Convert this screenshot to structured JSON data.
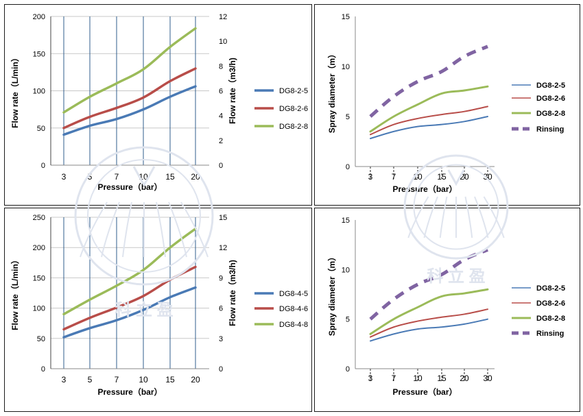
{
  "chart_data": [
    {
      "type": "line",
      "categories": [
        "3",
        "5",
        "7",
        "10",
        "15",
        "20"
      ],
      "ylabel": "Flow rate（L/min）",
      "y2label": "Flow rate（m3/h)",
      "xlabel": "Pressure（bar）",
      "ylim": [
        0,
        200
      ],
      "yticks": [
        "0",
        "50",
        "100",
        "150",
        "200"
      ],
      "y2lim": [
        0,
        12
      ],
      "y2ticks": [
        "0",
        "2",
        "4",
        "6",
        "8",
        "10",
        "12"
      ],
      "legend_position": "right",
      "series": [
        {
          "name": "DG8-2-5",
          "color": "#4a7ab5",
          "values": [
            41,
            53,
            62,
            75,
            92,
            106
          ]
        },
        {
          "name": "DG8-2-6",
          "color": "#b84d49",
          "values": [
            50,
            65,
            77,
            91,
            113,
            130
          ]
        },
        {
          "name": "DG8-2-8",
          "color": "#9bbb59",
          "values": [
            71,
            92,
            110,
            129,
            159,
            184
          ]
        }
      ]
    },
    {
      "type": "line",
      "categories": [
        "3",
        "7",
        "10",
        "15",
        "20",
        "30"
      ],
      "ylabel": "Spray diameter（m）",
      "xlabel": "Pressure（bar）",
      "ylim": [
        0,
        15
      ],
      "yticks": [
        "0",
        "5",
        "10",
        "15"
      ],
      "legend_position": "right",
      "series": [
        {
          "name": "DG8-2-5",
          "color": "#4a7ab5",
          "values": [
            2.8,
            3.5,
            4.0,
            4.2,
            4.5,
            5.0
          ]
        },
        {
          "name": "DG8-2-6",
          "color": "#b84d49",
          "values": [
            3.2,
            4.2,
            4.8,
            5.2,
            5.5,
            6.0
          ]
        },
        {
          "name": "DG8-2-8",
          "color": "#9bbb59",
          "values": [
            3.5,
            5.0,
            6.2,
            7.3,
            7.6,
            8.0
          ]
        },
        {
          "name": "Rinsing",
          "color": "#8064a2",
          "values": [
            5.0,
            7.0,
            8.5,
            9.5,
            11.0,
            12.0
          ]
        }
      ]
    },
    {
      "type": "line",
      "categories": [
        "3",
        "5",
        "7",
        "10",
        "15",
        "20"
      ],
      "ylabel": "Flow rate（L/min）",
      "y2label": "Flow rate（m3/h)",
      "xlabel": "Pressure（bar）",
      "ylim": [
        0,
        250
      ],
      "yticks": [
        "0",
        "50",
        "100",
        "150",
        "200",
        "250"
      ],
      "y2lim": [
        0,
        15
      ],
      "y2ticks": [
        "0",
        "3",
        "6",
        "9",
        "12",
        "15"
      ],
      "legend_position": "right",
      "series": [
        {
          "name": "DG8-4-5",
          "color": "#4a7ab5",
          "values": [
            52,
            67,
            80,
            97,
            118,
            134
          ]
        },
        {
          "name": "DG8-4-6",
          "color": "#b84d49",
          "values": [
            65,
            84,
            101,
            120,
            147,
            168
          ]
        },
        {
          "name": "DG8-4-8",
          "color": "#9bbb59",
          "values": [
            90,
            114,
            137,
            163,
            200,
            231
          ]
        }
      ]
    },
    {
      "type": "line",
      "categories": [
        "3",
        "7",
        "10",
        "15",
        "20",
        "30"
      ],
      "ylabel": "Spray diameter（m）",
      "xlabel": "Pressure（bar）",
      "ylim": [
        0,
        15
      ],
      "yticks": [
        "0",
        "5",
        "10",
        "15"
      ],
      "legend_position": "right",
      "series": [
        {
          "name": "DG8-2-5",
          "color": "#4a7ab5",
          "values": [
            2.8,
            3.5,
            4.0,
            4.2,
            4.5,
            5.0
          ]
        },
        {
          "name": "DG8-2-6",
          "color": "#b84d49",
          "values": [
            3.2,
            4.2,
            4.8,
            5.2,
            5.5,
            6.0
          ]
        },
        {
          "name": "DG8-2-8",
          "color": "#9bbb59",
          "values": [
            3.5,
            5.0,
            6.2,
            7.3,
            7.6,
            8.0
          ]
        },
        {
          "name": "Rinsing",
          "color": "#8064a2",
          "values": [
            5.0,
            7.0,
            8.5,
            9.5,
            11.0,
            12.0
          ]
        }
      ]
    }
  ],
  "watermark": {
    "text": "科 立 盈",
    "color": "#dfe4ee"
  }
}
